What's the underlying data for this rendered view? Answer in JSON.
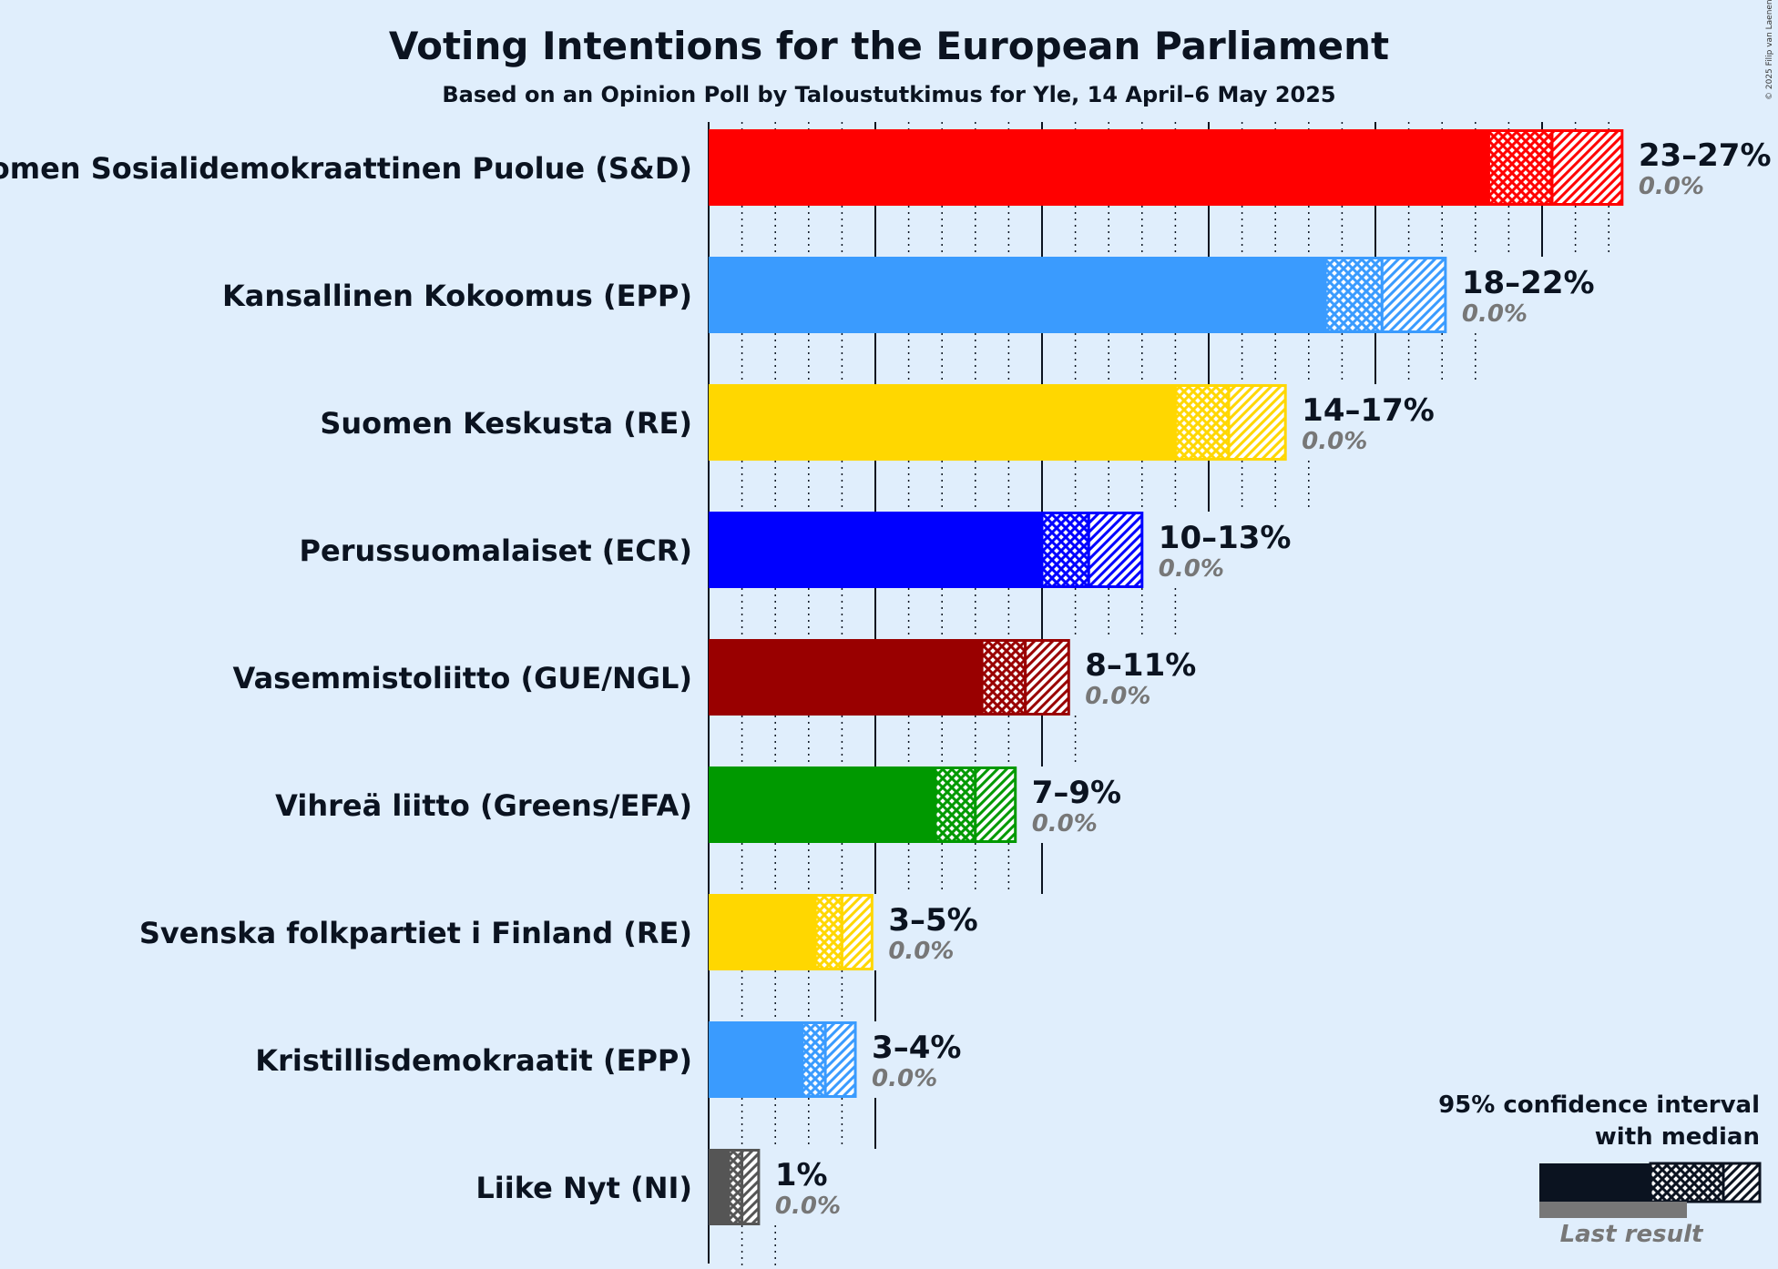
{
  "header": {
    "title": "Voting Intentions for the European Parliament",
    "subtitle": "Based on an Opinion Poll by Taloustutkimus for Yle, 14 April–6 May 2025"
  },
  "copyright": "© 2025 Filip van Laenen",
  "legend": {
    "line1": "95% confidence interval",
    "line2": "with median",
    "last_result": "Last result"
  },
  "chart_data": {
    "type": "bar",
    "orientation": "horizontal",
    "unit": "%",
    "xlim": [
      0,
      27.5
    ],
    "parties": [
      {
        "name": "Suomen Sosialidemokraattinen Puolue (S&D)",
        "color": "#ff0000",
        "low": 23.4,
        "median": 25.3,
        "high": 27.4,
        "label": "23–27%",
        "last": "0.0%"
      },
      {
        "name": "Kansallinen Kokoomus (EPP)",
        "color": "#3a9bfe",
        "low": 18.5,
        "median": 20.2,
        "high": 22.1,
        "label": "18–22%",
        "last": "0.0%"
      },
      {
        "name": "Suomen Keskusta (RE)",
        "color": "#ffd700",
        "low": 14.0,
        "median": 15.6,
        "high": 17.3,
        "label": "14–17%",
        "last": "0.0%"
      },
      {
        "name": "Perussuomalaiset (ECR)",
        "color": "#0000ff",
        "low": 10.0,
        "median": 11.4,
        "high": 13.0,
        "label": "10–13%",
        "last": "0.0%"
      },
      {
        "name": "Vasemmistoliitto (GUE/NGL)",
        "color": "#990000",
        "low": 8.2,
        "median": 9.5,
        "high": 10.8,
        "label": "8–11%",
        "last": "0.0%"
      },
      {
        "name": "Vihreä liitto (Greens/EFA)",
        "color": "#009900",
        "low": 6.8,
        "median": 8.0,
        "high": 9.2,
        "label": "7–9%",
        "last": "0.0%"
      },
      {
        "name": "Svenska folkpartiet i Finland (RE)",
        "color": "#ffd700",
        "low": 3.2,
        "median": 4.0,
        "high": 4.9,
        "label": "3–5%",
        "last": "0.0%"
      },
      {
        "name": "Kristillisdemokraatit (EPP)",
        "color": "#3a9bfe",
        "low": 2.8,
        "median": 3.5,
        "high": 4.4,
        "label": "3–4%",
        "last": "0.0%"
      },
      {
        "name": "Liike Nyt (NI)",
        "color": "#555555",
        "low": 0.6,
        "median": 1.0,
        "high": 1.5,
        "label": "1%",
        "last": "0.0%"
      }
    ]
  }
}
